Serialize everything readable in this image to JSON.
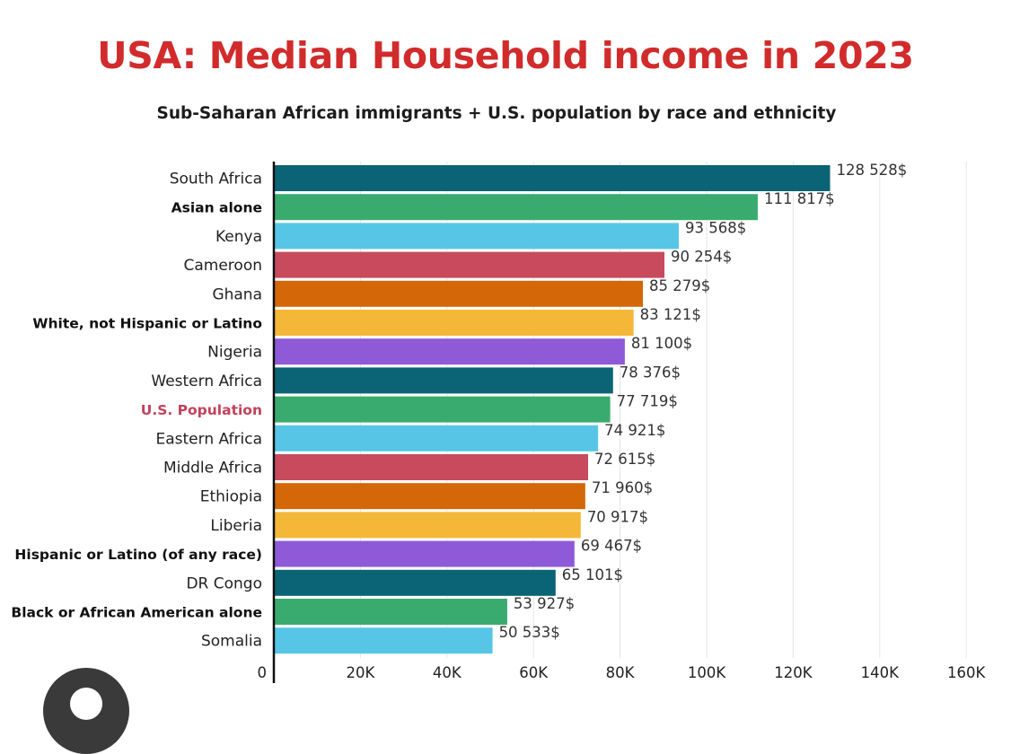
{
  "title": "USA: Median Household income in 2023",
  "subtitle": "Sub-Saharan African immigrants + U.S. population by race and ethnicity",
  "chart_data": {
    "type": "bar",
    "orientation": "horizontal",
    "title": "USA: Median Household income in 2023",
    "subtitle": "Sub-Saharan African immigrants + U.S. population by race and ethnicity",
    "xlabel": "",
    "ylabel": "",
    "xlim": [
      0,
      160000
    ],
    "grid": true,
    "legend": "none",
    "ticks": [
      "0",
      "20K",
      "40K",
      "60K",
      "80K",
      "100K",
      "120K",
      "140K",
      "160K"
    ],
    "tick_values": [
      0,
      20000,
      40000,
      60000,
      80000,
      100000,
      120000,
      140000,
      160000
    ],
    "categories": [
      {
        "label": "South Africa",
        "value": 128528,
        "value_label": "128 528$",
        "color": "#0b6476",
        "style": "normal"
      },
      {
        "label": "Asian alone",
        "value": 111817,
        "value_label": "111 817$",
        "color": "#3aab6e",
        "style": "bold"
      },
      {
        "label": "Kenya",
        "value": 93568,
        "value_label": "93 568$",
        "color": "#57c6e6",
        "style": "normal"
      },
      {
        "label": "Cameroon",
        "value": 90254,
        "value_label": "90 254$",
        "color": "#c84a5d",
        "style": "normal"
      },
      {
        "label": "Ghana",
        "value": 85279,
        "value_label": "85 279$",
        "color": "#d46707",
        "style": "normal"
      },
      {
        "label": "White, not Hispanic or Latino",
        "value": 83121,
        "value_label": "83 121$",
        "color": "#f4b737",
        "style": "bold"
      },
      {
        "label": "Nigeria",
        "value": 81100,
        "value_label": "81 100$",
        "color": "#8e5ad8",
        "style": "normal"
      },
      {
        "label": "Western Africa",
        "value": 78376,
        "value_label": "78 376$",
        "color": "#0b6476",
        "style": "normal"
      },
      {
        "label": "U.S. Population",
        "value": 77719,
        "value_label": "77 719$",
        "color": "#3aab6e",
        "style": "highlight"
      },
      {
        "label": "Eastern Africa",
        "value": 74921,
        "value_label": "74 921$",
        "color": "#57c6e6",
        "style": "normal"
      },
      {
        "label": "Middle Africa",
        "value": 72615,
        "value_label": "72 615$",
        "color": "#c84a5d",
        "style": "normal"
      },
      {
        "label": "Ethiopia",
        "value": 71960,
        "value_label": "71 960$",
        "color": "#d46707",
        "style": "normal"
      },
      {
        "label": "Liberia",
        "value": 70917,
        "value_label": "70 917$",
        "color": "#f4b737",
        "style": "normal"
      },
      {
        "label": "Hispanic or Latino (of any race)",
        "value": 69467,
        "value_label": "69 467$",
        "color": "#8e5ad8",
        "style": "bold"
      },
      {
        "label": "DR Congo",
        "value": 65101,
        "value_label": "65 101$",
        "color": "#0b6476",
        "style": "normal"
      },
      {
        "label": "Black or African American alone",
        "value": 53927,
        "value_label": "53 927$",
        "color": "#3aab6e",
        "style": "bold"
      },
      {
        "label": "Somalia",
        "value": 50533,
        "value_label": "50 533$",
        "color": "#57c6e6",
        "style": "normal"
      }
    ]
  }
}
